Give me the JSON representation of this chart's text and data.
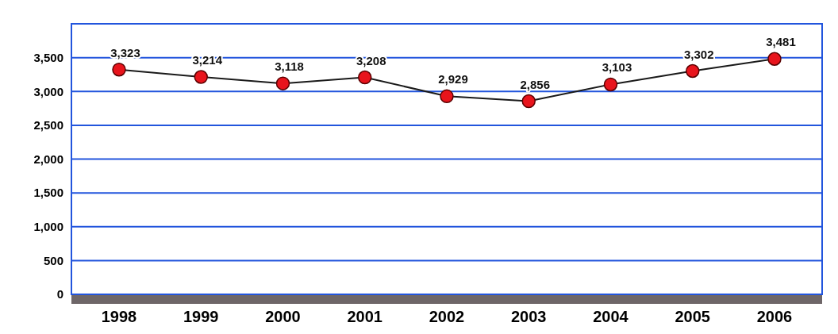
{
  "chart_data": {
    "type": "line",
    "categories": [
      "1998",
      "1999",
      "2000",
      "2001",
      "2002",
      "2003",
      "2004",
      "2005",
      "2006"
    ],
    "series": [
      {
        "color": "#1a1a1a",
        "values": [
          3323,
          3214,
          3118,
          3208,
          2929,
          2856,
          3103,
          3302,
          3481
        ],
        "value_labels": [
          "3,323",
          "3,214",
          "3,118",
          "3,208",
          "2,929",
          "2,856",
          "3,103",
          "3,302",
          "3,481"
        ]
      }
    ],
    "ylim": [
      0,
      4000
    ],
    "yticks": [
      {
        "value": 0,
        "label": "0"
      },
      {
        "value": 500,
        "label": "500"
      },
      {
        "value": 1000,
        "label": "1,000"
      },
      {
        "value": 1500,
        "label": "1,500"
      },
      {
        "value": 2000,
        "label": "2,000"
      },
      {
        "value": 2500,
        "label": "2,500"
      },
      {
        "value": 3000,
        "label": "3,000"
      },
      {
        "value": 3500,
        "label": "3,500"
      }
    ],
    "grid": "y",
    "marker": "circle",
    "line_style": "solid"
  }
}
